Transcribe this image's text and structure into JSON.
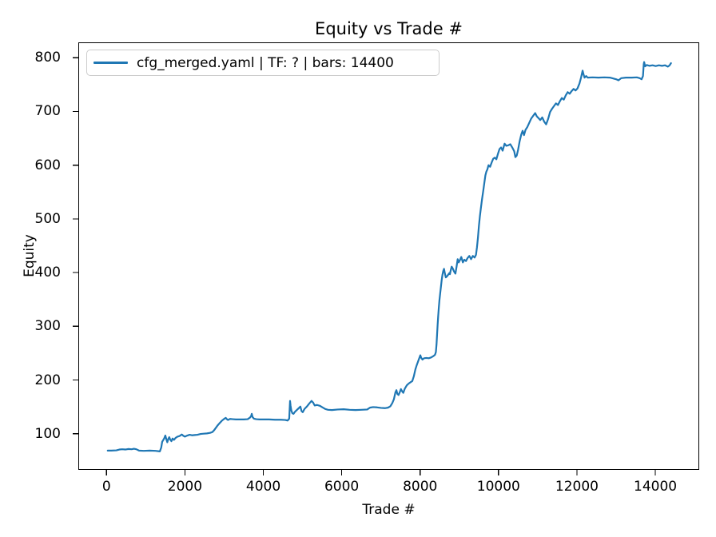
{
  "window": {
    "background": "#ffffff"
  },
  "chart_data": {
    "type": "line",
    "title": "Equity vs Trade #",
    "xlabel": "Trade #",
    "ylabel": "Equity",
    "grid": false,
    "legend_position": "upper left",
    "legend": [
      {
        "label": "cfg_merged.yaml | TF: ? | bars: 14400",
        "color": "#1f77b4"
      }
    ],
    "x_ticks": [
      0,
      2000,
      4000,
      6000,
      8000,
      10000,
      12000,
      14000
    ],
    "y_ticks": [
      100,
      200,
      300,
      400,
      500,
      600,
      700,
      800
    ],
    "xlim": [
      -720,
      15120
    ],
    "ylim": [
      32.6,
      828.7
    ],
    "axis_color": "#000000",
    "series": [
      {
        "name": "cfg_merged.yaml | TF: ? | bars: 14400",
        "color": "#1f77b4",
        "points": [
          [
            30,
            68.5
          ],
          [
            120,
            68.5
          ],
          [
            250,
            69
          ],
          [
            330,
            70.5
          ],
          [
            400,
            71
          ],
          [
            480,
            70.5
          ],
          [
            560,
            71.5
          ],
          [
            640,
            71
          ],
          [
            700,
            72
          ],
          [
            760,
            71
          ],
          [
            830,
            68.5
          ],
          [
            950,
            68
          ],
          [
            1100,
            68.5
          ],
          [
            1250,
            68
          ],
          [
            1360,
            67
          ],
          [
            1395,
            74
          ],
          [
            1420,
            85
          ],
          [
            1445,
            88
          ],
          [
            1470,
            91
          ],
          [
            1500,
            96.5
          ],
          [
            1525,
            90
          ],
          [
            1550,
            84
          ],
          [
            1575,
            90
          ],
          [
            1600,
            93.5
          ],
          [
            1625,
            89
          ],
          [
            1655,
            86
          ],
          [
            1685,
            91
          ],
          [
            1720,
            88.5
          ],
          [
            1760,
            92
          ],
          [
            1810,
            94.5
          ],
          [
            1860,
            95.5
          ],
          [
            1920,
            98.5
          ],
          [
            1960,
            96
          ],
          [
            2000,
            94.5
          ],
          [
            2060,
            96.5
          ],
          [
            2120,
            98
          ],
          [
            2180,
            97
          ],
          [
            2250,
            97.5
          ],
          [
            2320,
            98
          ],
          [
            2400,
            99.5
          ],
          [
            2480,
            100
          ],
          [
            2560,
            100.5
          ],
          [
            2640,
            101.5
          ],
          [
            2700,
            103
          ],
          [
            2740,
            106
          ],
          [
            2790,
            111
          ],
          [
            2840,
            116
          ],
          [
            2890,
            120
          ],
          [
            2940,
            124
          ],
          [
            2990,
            127
          ],
          [
            3040,
            129.5
          ],
          [
            3070,
            127
          ],
          [
            3100,
            125.5
          ],
          [
            3150,
            127.5
          ],
          [
            3220,
            127
          ],
          [
            3300,
            126.5
          ],
          [
            3400,
            126.5
          ],
          [
            3500,
            126.5
          ],
          [
            3600,
            127
          ],
          [
            3660,
            130
          ],
          [
            3690,
            133
          ],
          [
            3705,
            137
          ],
          [
            3725,
            131
          ],
          [
            3760,
            128
          ],
          [
            3820,
            127
          ],
          [
            3900,
            126.5
          ],
          [
            4000,
            126.5
          ],
          [
            4150,
            126.5
          ],
          [
            4300,
            126
          ],
          [
            4450,
            126
          ],
          [
            4560,
            125.5
          ],
          [
            4620,
            124.5
          ],
          [
            4660,
            128
          ],
          [
            4682,
            161
          ],
          [
            4695,
            152
          ],
          [
            4715,
            143
          ],
          [
            4740,
            138
          ],
          [
            4770,
            137
          ],
          [
            4810,
            141
          ],
          [
            4860,
            144.5
          ],
          [
            4910,
            148
          ],
          [
            4945,
            150.5
          ],
          [
            4975,
            142
          ],
          [
            5005,
            140
          ],
          [
            5050,
            146
          ],
          [
            5110,
            150.5
          ],
          [
            5170,
            156
          ],
          [
            5230,
            161
          ],
          [
            5270,
            158
          ],
          [
            5310,
            152.5
          ],
          [
            5370,
            153.5
          ],
          [
            5440,
            152
          ],
          [
            5510,
            149
          ],
          [
            5580,
            146
          ],
          [
            5650,
            144.5
          ],
          [
            5750,
            144
          ],
          [
            5900,
            145
          ],
          [
            6050,
            145.5
          ],
          [
            6200,
            144.5
          ],
          [
            6350,
            144
          ],
          [
            6500,
            144.5
          ],
          [
            6650,
            145
          ],
          [
            6720,
            148.5
          ],
          [
            6800,
            149.5
          ],
          [
            6900,
            149
          ],
          [
            7000,
            148
          ],
          [
            7100,
            147.5
          ],
          [
            7180,
            148.5
          ],
          [
            7240,
            151
          ],
          [
            7290,
            157
          ],
          [
            7330,
            164
          ],
          [
            7370,
            177
          ],
          [
            7395,
            181
          ],
          [
            7420,
            174
          ],
          [
            7450,
            172
          ],
          [
            7480,
            177
          ],
          [
            7510,
            183
          ],
          [
            7540,
            179
          ],
          [
            7570,
            176
          ],
          [
            7610,
            184
          ],
          [
            7660,
            190
          ],
          [
            7710,
            193.5
          ],
          [
            7760,
            196
          ],
          [
            7800,
            198
          ],
          [
            7840,
            207
          ],
          [
            7880,
            220
          ],
          [
            7915,
            228
          ],
          [
            7950,
            235
          ],
          [
            7980,
            241
          ],
          [
            8005,
            246
          ],
          [
            8030,
            241
          ],
          [
            8060,
            238
          ],
          [
            8100,
            240.5
          ],
          [
            8160,
            241
          ],
          [
            8220,
            240.5
          ],
          [
            8280,
            242
          ],
          [
            8340,
            244.5
          ],
          [
            8380,
            247
          ],
          [
            8402,
            252
          ],
          [
            8418,
            266
          ],
          [
            8432,
            284
          ],
          [
            8446,
            302
          ],
          [
            8460,
            318
          ],
          [
            8476,
            334
          ],
          [
            8492,
            348
          ],
          [
            8510,
            360
          ],
          [
            8530,
            373
          ],
          [
            8550,
            386
          ],
          [
            8570,
            396
          ],
          [
            8590,
            403
          ],
          [
            8610,
            407
          ],
          [
            8630,
            399
          ],
          [
            8655,
            391
          ],
          [
            8685,
            393
          ],
          [
            8715,
            396
          ],
          [
            8745,
            399
          ],
          [
            8760,
            397
          ],
          [
            8780,
            404
          ],
          [
            8805,
            411
          ],
          [
            8830,
            408
          ],
          [
            8865,
            402
          ],
          [
            8900,
            398
          ],
          [
            8930,
            411
          ],
          [
            8958,
            425
          ],
          [
            8985,
            419
          ],
          [
            9015,
            423
          ],
          [
            9050,
            429
          ],
          [
            9090,
            419
          ],
          [
            9130,
            424
          ],
          [
            9170,
            421.5
          ],
          [
            9210,
            427
          ],
          [
            9255,
            431
          ],
          [
            9300,
            425
          ],
          [
            9345,
            431
          ],
          [
            9390,
            428
          ],
          [
            9425,
            433
          ],
          [
            9450,
            447
          ],
          [
            9475,
            465
          ],
          [
            9500,
            487
          ],
          [
            9525,
            505
          ],
          [
            9550,
            520
          ],
          [
            9580,
            537
          ],
          [
            9610,
            552
          ],
          [
            9640,
            568
          ],
          [
            9665,
            581
          ],
          [
            9690,
            588
          ],
          [
            9715,
            592
          ],
          [
            9745,
            600
          ],
          [
            9785,
            597
          ],
          [
            9825,
            605
          ],
          [
            9865,
            612
          ],
          [
            9905,
            614
          ],
          [
            9945,
            611
          ],
          [
            9985,
            621
          ],
          [
            10025,
            630
          ],
          [
            10065,
            633
          ],
          [
            10105,
            627
          ],
          [
            10155,
            640
          ],
          [
            10200,
            636
          ],
          [
            10250,
            637
          ],
          [
            10300,
            639
          ],
          [
            10350,
            633
          ],
          [
            10400,
            626
          ],
          [
            10430,
            615
          ],
          [
            10465,
            618
          ],
          [
            10500,
            629
          ],
          [
            10540,
            645
          ],
          [
            10580,
            657
          ],
          [
            10615,
            664
          ],
          [
            10650,
            656
          ],
          [
            10690,
            666
          ],
          [
            10735,
            671
          ],
          [
            10785,
            679
          ],
          [
            10835,
            687
          ],
          [
            10885,
            692
          ],
          [
            10935,
            697
          ],
          [
            10975,
            691
          ],
          [
            11015,
            688
          ],
          [
            11065,
            684
          ],
          [
            11115,
            689
          ],
          [
            11165,
            681
          ],
          [
            11215,
            676
          ],
          [
            11265,
            686
          ],
          [
            11315,
            699
          ],
          [
            11365,
            705
          ],
          [
            11415,
            710
          ],
          [
            11465,
            715
          ],
          [
            11515,
            712
          ],
          [
            11565,
            719
          ],
          [
            11615,
            725
          ],
          [
            11665,
            722
          ],
          [
            11715,
            730
          ],
          [
            11765,
            736
          ],
          [
            11815,
            733
          ],
          [
            11865,
            738
          ],
          [
            11915,
            742
          ],
          [
            11965,
            739
          ],
          [
            12015,
            743
          ],
          [
            12065,
            752
          ],
          [
            12105,
            763
          ],
          [
            12145,
            776
          ],
          [
            12165,
            770
          ],
          [
            12195,
            763
          ],
          [
            12235,
            766
          ],
          [
            12275,
            763
          ],
          [
            12400,
            763.5
          ],
          [
            12550,
            763
          ],
          [
            12700,
            763.5
          ],
          [
            12850,
            763
          ],
          [
            13000,
            760
          ],
          [
            13060,
            758
          ],
          [
            13130,
            762
          ],
          [
            13250,
            763
          ],
          [
            13400,
            763
          ],
          [
            13530,
            763.5
          ],
          [
            13600,
            762
          ],
          [
            13650,
            760
          ],
          [
            13685,
            766
          ],
          [
            13705,
            788
          ],
          [
            13715,
            792
          ],
          [
            13740,
            784
          ],
          [
            13780,
            786.5
          ],
          [
            13850,
            785
          ],
          [
            13930,
            786
          ],
          [
            14010,
            784.5
          ],
          [
            14090,
            786
          ],
          [
            14170,
            785
          ],
          [
            14250,
            786
          ],
          [
            14320,
            783.5
          ],
          [
            14365,
            786
          ],
          [
            14400,
            790
          ]
        ]
      }
    ]
  }
}
